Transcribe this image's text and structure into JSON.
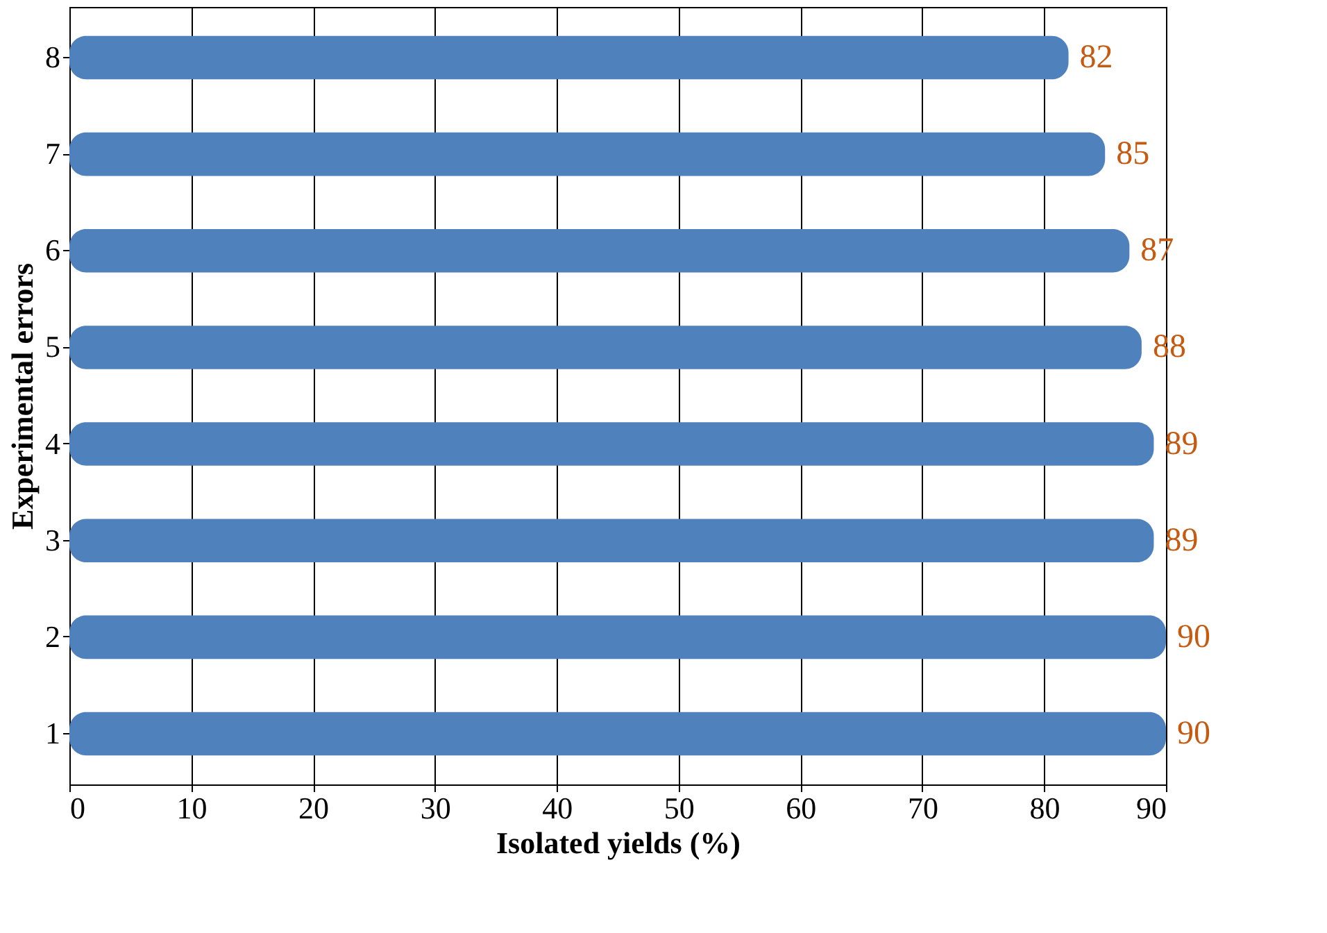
{
  "chart_data": {
    "type": "bar",
    "orientation": "horizontal",
    "xlabel": "Isolated yields (%)",
    "ylabel": "Experimental errors",
    "categories": [
      "8",
      "7",
      "6",
      "5",
      "4",
      "3",
      "2",
      "1"
    ],
    "values": [
      82,
      85,
      87,
      88,
      89,
      89,
      90,
      90
    ],
    "color": "#4f81bd",
    "data_labels": true,
    "xlim": [
      0,
      90
    ],
    "xticks": [
      0,
      10,
      20,
      30,
      40,
      50,
      60,
      70,
      80,
      90
    ],
    "grid": "x"
  }
}
